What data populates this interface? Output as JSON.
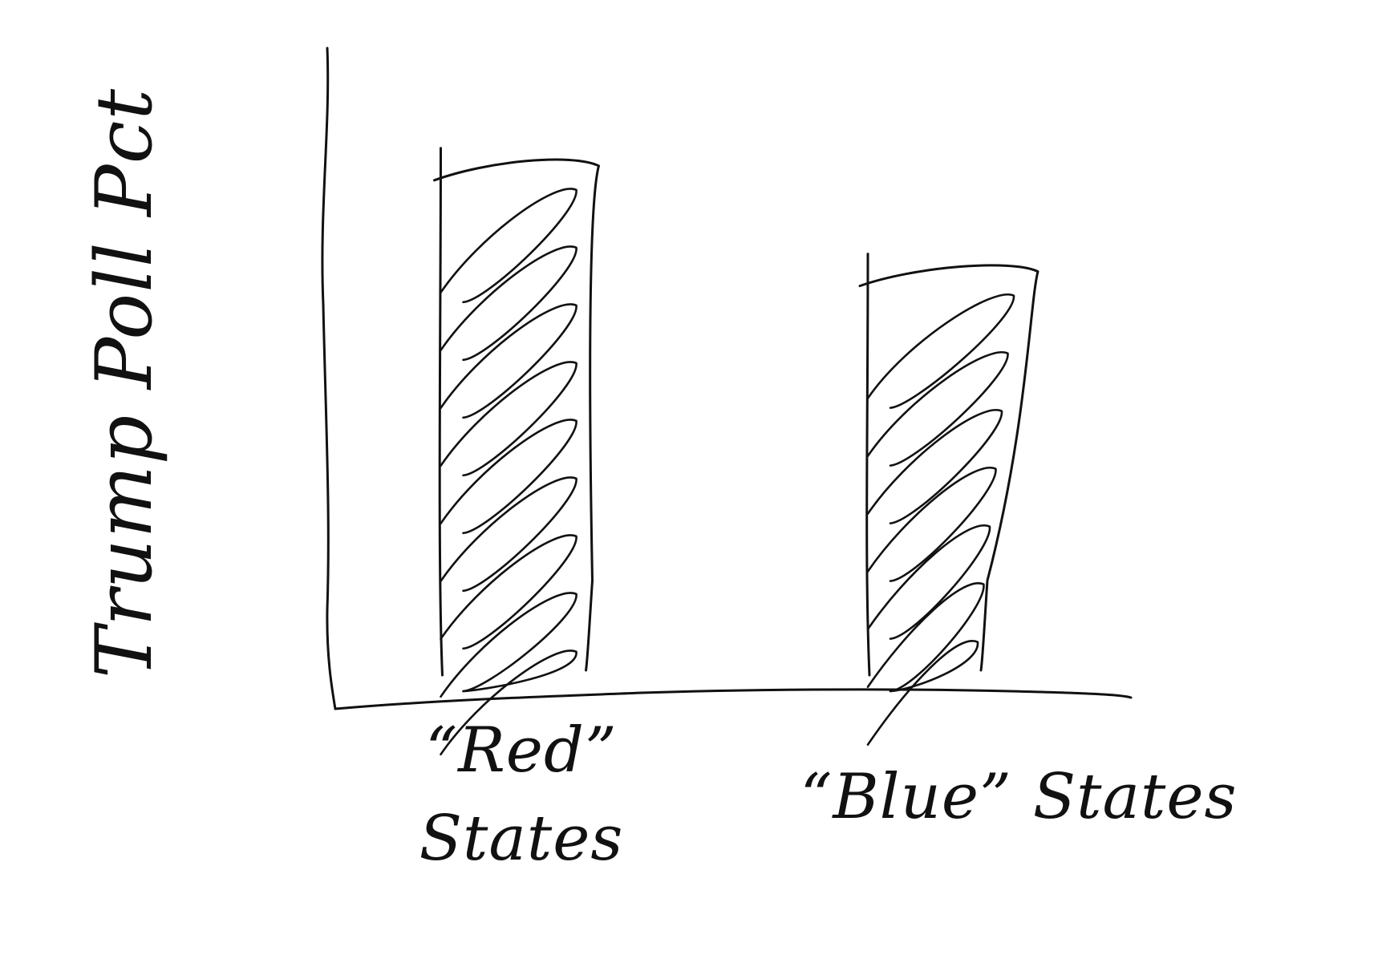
{
  "chart_data": {
    "type": "bar",
    "ylabel": "Trump Poll Pct",
    "xlabel": "",
    "categories": [
      "“Red” States",
      "“Blue” States"
    ],
    "category_lines": [
      [
        "“Red”",
        "States"
      ],
      [
        "“Blue” States"
      ]
    ],
    "values": [
      100,
      80
    ],
    "ylim": [
      0,
      125
    ],
    "grid": false,
    "legend": "none",
    "style": "hand-drawn sketch, hatched bars"
  }
}
